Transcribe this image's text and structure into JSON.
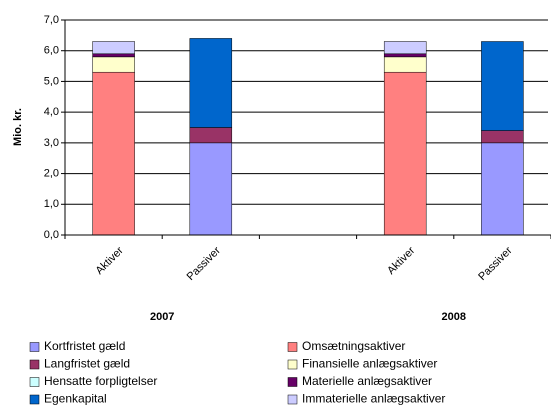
{
  "chart_data": {
    "type": "stacked_bar",
    "y_label": "Mio. kr.",
    "categories": [
      "Aktiver",
      "Passiver",
      null,
      "Aktiver",
      "Passiver"
    ],
    "group_labels": [
      "2007",
      "2008"
    ],
    "ylim": [
      0,
      7
    ],
    "yticks": [
      {
        "value": 0,
        "label": "0,0"
      },
      {
        "value": 1,
        "label": "1,0"
      },
      {
        "value": 2,
        "label": "2,0"
      },
      {
        "value": 3,
        "label": "3,0"
      },
      {
        "value": 4,
        "label": "4,0"
      },
      {
        "value": 5,
        "label": "5,0"
      },
      {
        "value": 6,
        "label": "6,0"
      },
      {
        "value": 7,
        "label": "7,0"
      }
    ],
    "grid": true,
    "series": [
      {
        "name": "Kortfristet gæld",
        "color": "#9999ff",
        "values": [
          null,
          3.0,
          null,
          null,
          3.0
        ]
      },
      {
        "name": "Omsætningsaktiver",
        "color": "#ff8080",
        "values": [
          5.3,
          null,
          null,
          5.3,
          null
        ]
      },
      {
        "name": "Langfristet gæld",
        "color": "#993366",
        "values": [
          null,
          0.5,
          null,
          null,
          0.4
        ]
      },
      {
        "name": "Finansielle anlægsaktiver",
        "color": "#ffffcc",
        "values": [
          0.5,
          null,
          null,
          0.5,
          null
        ]
      },
      {
        "name": "Hensatte forpligtelser",
        "color": "#ccffff",
        "values": [
          null,
          0,
          null,
          null,
          0
        ]
      },
      {
        "name": "Materielle anlægsaktiver",
        "color": "#660066",
        "values": [
          0.1,
          null,
          null,
          0.1,
          null
        ]
      },
      {
        "name": "Egenkapital",
        "color": "#0066cc",
        "values": [
          null,
          2.9,
          null,
          null,
          2.9
        ]
      },
      {
        "name": "Immaterielle anlægsaktiver",
        "color": "#ccccff",
        "values": [
          0.4,
          null,
          null,
          0.4,
          null
        ]
      }
    ]
  }
}
